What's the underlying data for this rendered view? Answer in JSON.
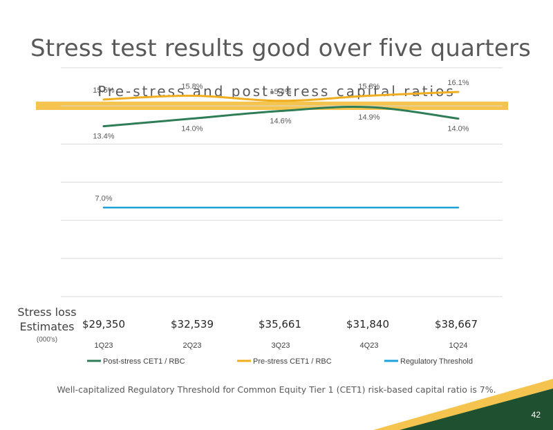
{
  "slide": {
    "title": "Stress test results good over five quarters",
    "footnote": "Well-capitalized Regulatory Threshold for Common Equity Tier 1 (CET1) risk-based capital ratio is 7%.",
    "page_number": "42"
  },
  "stress_loss": {
    "label_line1": "Stress loss",
    "label_line2": "Estimates",
    "units": "(000's)",
    "values": [
      "$29,350",
      "$32,539",
      "$35,661",
      "$31,840",
      "$38,667"
    ]
  },
  "colors": {
    "title": "#595959",
    "accent_yellow": "#F4C44E",
    "post_stress": "#2E7D57",
    "pre_stress": "#F0AE1E",
    "regulatory": "#1DA1DB",
    "corner_green": "#1F5130",
    "corner_gold": "#F4C44E"
  },
  "chart_data": {
    "type": "line",
    "title": "Pre-stress and post-stress capital ratios",
    "categories": [
      "1Q23",
      "2Q23",
      "3Q23",
      "4Q23",
      "1Q24"
    ],
    "ylim": [
      0,
      18
    ],
    "grid": true,
    "legend_position": "bottom",
    "series": [
      {
        "name": "Post-stress CET1 / RBC",
        "values": [
          13.4,
          14.0,
          14.6,
          14.9,
          14.0
        ],
        "labels": [
          "13.4%",
          "14.0%",
          "14.6%",
          "14.9%",
          "14.0%"
        ],
        "label_side": "below",
        "color": "#2E7D57"
      },
      {
        "name": "Pre-stress CET1 / RBC",
        "values": [
          15.5,
          15.8,
          15.4,
          15.8,
          16.1
        ],
        "labels": [
          "15.5%",
          "15.8%",
          "15.4%",
          "15.8%",
          "16.1%"
        ],
        "label_side": "above",
        "color": "#F0AE1E"
      },
      {
        "name": "Regulatory Threshold",
        "values": [
          7.0,
          7.0,
          7.0,
          7.0,
          7.0
        ],
        "labels": [
          "7.0%",
          "",
          "",
          "",
          ""
        ],
        "label_side": "above",
        "color": "#1DA1DB"
      }
    ]
  }
}
